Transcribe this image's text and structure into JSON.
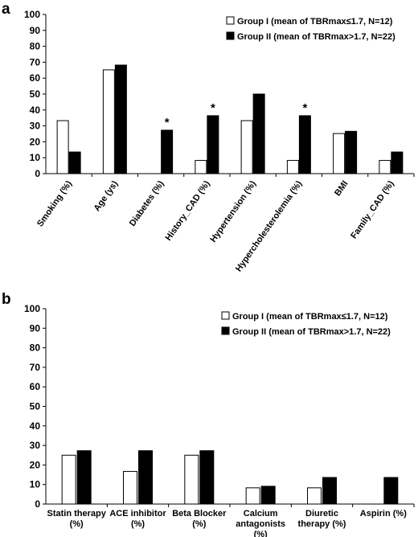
{
  "chart_data": [
    {
      "type": "bar",
      "panel": "a",
      "ylim": [
        0,
        100
      ],
      "yticks": [
        0,
        10,
        20,
        30,
        40,
        50,
        60,
        70,
        80,
        90,
        100
      ],
      "categories": [
        "Smoking (%)",
        "Age (ys)",
        "Diabetes (%)",
        "History_CAD (%)",
        "Hypertension (%)",
        "Hypercholesterolemia (%)",
        "BMI",
        "Family_CAD (%)"
      ],
      "series": [
        {
          "name": "Group I (mean of TBRmax≤1.7, N=12)",
          "color": "#ffffff",
          "values": [
            33.3,
            65.2,
            0,
            8.3,
            33.3,
            8.3,
            25.2,
            8.3
          ]
        },
        {
          "name": "Group II (mean of TBRmax>1.7, N=22)",
          "color": "#000000",
          "values": [
            13.6,
            68.2,
            27.3,
            36.4,
            50.0,
            36.4,
            26.6,
            13.6
          ]
        }
      ],
      "annotations": [
        {
          "category": "Diabetes (%)",
          "text": "*"
        },
        {
          "category": "History_CAD (%)",
          "text": "*"
        },
        {
          "category": "Hypercholesterolemia (%)",
          "text": "*"
        }
      ],
      "legend": "top-right",
      "grid": false
    },
    {
      "type": "bar",
      "panel": "b",
      "ylim": [
        0,
        100
      ],
      "yticks": [
        0,
        10,
        20,
        30,
        40,
        50,
        60,
        70,
        80,
        90,
        100
      ],
      "categories": [
        [
          "Statin therapy",
          "(%)"
        ],
        [
          "ACE inhibitor",
          "(%)"
        ],
        [
          "Beta Blocker",
          "(%)"
        ],
        [
          "Calcium",
          "antagonists",
          "(%)"
        ],
        [
          "Diuretic",
          "therapy (%)"
        ],
        [
          "Aspirin (%)"
        ]
      ],
      "series": [
        {
          "name": "Group I (mean of TBRmax≤1.7, N=12)",
          "color": "#ffffff",
          "values": [
            25.0,
            16.7,
            25.0,
            8.3,
            8.3,
            0
          ]
        },
        {
          "name": "Group II (mean of TBRmax>1.7, N=22)",
          "color": "#000000",
          "values": [
            27.3,
            27.3,
            27.3,
            9.1,
            13.6,
            13.6
          ]
        }
      ],
      "legend": "top-right",
      "grid": false
    }
  ],
  "panel_labels": {
    "a": "a",
    "b": "b"
  }
}
